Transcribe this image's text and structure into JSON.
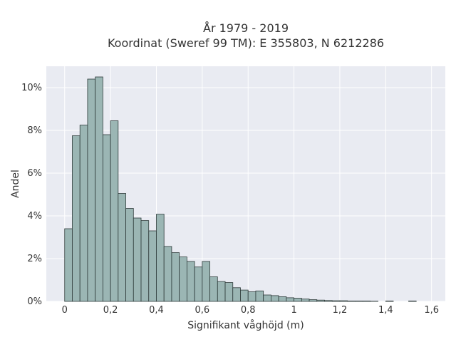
{
  "chart_data": {
    "type": "bar",
    "title": "År 1979 - 2019",
    "subtitle": "Koordinat (Sweref 99 TM): E 355803, N 6212286",
    "xlabel": "Signifikant våghöjd (m)",
    "ylabel": "Andel",
    "xlim": [
      -0.08,
      1.66
    ],
    "ylim": [
      0,
      0.11
    ],
    "x_ticks": [
      0,
      0.2,
      0.4,
      0.6,
      0.8,
      1,
      1.2,
      1.4,
      1.6
    ],
    "x_tick_labels": [
      "0",
      "0,2",
      "0,4",
      "0,6",
      "0,8",
      "1",
      "1,2",
      "1,4",
      "1,6"
    ],
    "y_ticks": [
      0,
      0.02,
      0.04,
      0.06,
      0.08,
      0.1
    ],
    "y_tick_labels": [
      "0%",
      "2%",
      "4%",
      "6%",
      "8%",
      "10%"
    ],
    "grid": true,
    "bin_width": 0.0333,
    "bins_start": [
      0.0,
      0.0333,
      0.0667,
      0.1,
      0.1333,
      0.1667,
      0.2,
      0.2333,
      0.2667,
      0.3,
      0.3333,
      0.3667,
      0.4,
      0.4333,
      0.4667,
      0.5,
      0.5333,
      0.5667,
      0.6,
      0.6333,
      0.6667,
      0.7,
      0.7333,
      0.7667,
      0.8,
      0.8333,
      0.8667,
      0.9,
      0.9333,
      0.9667,
      1.0,
      1.0333,
      1.0667,
      1.1,
      1.1333,
      1.1667,
      1.2,
      1.2333,
      1.2667,
      1.3,
      1.3333,
      1.3667,
      1.4,
      1.4333,
      1.4667,
      1.5
    ],
    "values": [
      0.034,
      0.0775,
      0.0825,
      0.104,
      0.105,
      0.078,
      0.0845,
      0.0505,
      0.0435,
      0.039,
      0.0378,
      0.033,
      0.0408,
      0.0257,
      0.0228,
      0.0208,
      0.0187,
      0.0161,
      0.0187,
      0.0115,
      0.0093,
      0.0088,
      0.0064,
      0.0053,
      0.0045,
      0.0049,
      0.003,
      0.0027,
      0.0022,
      0.0017,
      0.0015,
      0.0011,
      0.0008,
      0.0006,
      0.0004,
      0.0003,
      0.0003,
      0.0002,
      0.0002,
      0.0002,
      0.0001,
      0.0,
      0.0002,
      0.0,
      0.0,
      0.0002
    ],
    "colors": {
      "bar_fill": "#9bb6b4",
      "bar_stroke": "#2e3b3a",
      "plot_bg": "#e9ebf2",
      "grid": "#ffffff"
    }
  }
}
